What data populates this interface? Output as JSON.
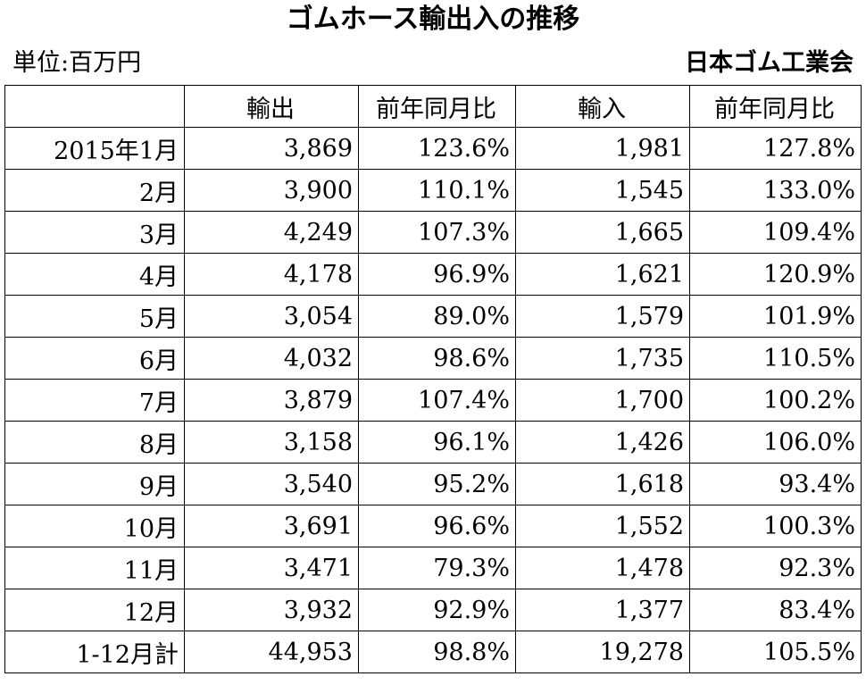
{
  "title": "ゴムホース輸出入の推移",
  "unit_label": "単位:百万円",
  "source": "日本ゴム工業会",
  "table": {
    "headers": [
      "",
      "輸出",
      "前年同月比",
      "輸入",
      "前年同月比"
    ],
    "rows": [
      [
        "2015年1月",
        "3,869",
        "123.6%",
        "1,981",
        "127.8%"
      ],
      [
        "2月",
        "3,900",
        "110.1%",
        "1,545",
        "133.0%"
      ],
      [
        "3月",
        "4,249",
        "107.3%",
        "1,665",
        "109.4%"
      ],
      [
        "4月",
        "4,178",
        "96.9%",
        "1,621",
        "120.9%"
      ],
      [
        "5月",
        "3,054",
        "89.0%",
        "1,579",
        "101.9%"
      ],
      [
        "6月",
        "4,032",
        "98.6%",
        "1,735",
        "110.5%"
      ],
      [
        "7月",
        "3,879",
        "107.4%",
        "1,700",
        "100.2%"
      ],
      [
        "8月",
        "3,158",
        "96.1%",
        "1,426",
        "106.0%"
      ],
      [
        "9月",
        "3,540",
        "95.2%",
        "1,618",
        "93.4%"
      ],
      [
        "10月",
        "3,691",
        "96.6%",
        "1,552",
        "100.3%"
      ],
      [
        "11月",
        "3,471",
        "79.3%",
        "1,478",
        "92.3%"
      ],
      [
        "12月",
        "3,932",
        "92.9%",
        "1,377",
        "83.4%"
      ],
      [
        "1-12月計",
        "44,953",
        "98.8%",
        "19,278",
        "105.5%"
      ]
    ]
  }
}
